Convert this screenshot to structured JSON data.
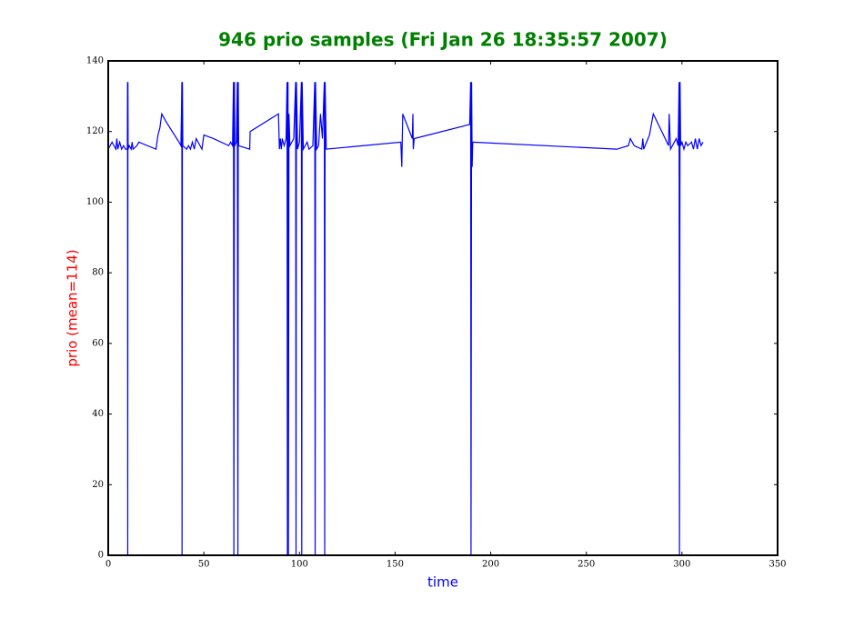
{
  "chart_data": {
    "type": "line",
    "title": "946 prio samples (Fri Jan 26 18:35:57 2007)",
    "xlabel": "time",
    "ylabel": "prio (mean=114)",
    "xlim": [
      0,
      350
    ],
    "ylim": [
      0,
      140
    ],
    "xticks": [
      0,
      50,
      100,
      150,
      200,
      250,
      300,
      350
    ],
    "yticks": [
      0,
      20,
      40,
      60,
      80,
      100,
      120,
      140
    ],
    "x": [
      0,
      2,
      4,
      4.5,
      5,
      6,
      7,
      8,
      9,
      10,
      10.1,
      10.2,
      10.3,
      10.4,
      11,
      12,
      12.5,
      13,
      15,
      16,
      25,
      26,
      27,
      28,
      30,
      37,
      38,
      38.3,
      38.5,
      38.6,
      38.8,
      39,
      41,
      42,
      43,
      44,
      45,
      46,
      48,
      49,
      50,
      55,
      63,
      64,
      65,
      65.5,
      65.7,
      66,
      66.2,
      67,
      67.5,
      67.8,
      68,
      68.2,
      74,
      74.2,
      89,
      89.5,
      90,
      90.5,
      91,
      92,
      93,
      93.5,
      93.7,
      94,
      94.2,
      94.5,
      95,
      97,
      98,
      98.2,
      98.4,
      99,
      100,
      101,
      101.2,
      101.4,
      102,
      104,
      105,
      107,
      108,
      108.2,
      108.4,
      109,
      110,
      111,
      112,
      113,
      113.2,
      113.4,
      114,
      153,
      153.5,
      154,
      159,
      159.3,
      159.5,
      160,
      189,
      189.5,
      189.7,
      190,
      190.3,
      190.6,
      266,
      272,
      273,
      275,
      279,
      279.5,
      280,
      283,
      285,
      293,
      293.3,
      294,
      297,
      298,
      298.5,
      298.7,
      299,
      299.3,
      300,
      301,
      302,
      303,
      305,
      306,
      307,
      308,
      309,
      310,
      311
    ],
    "series": [
      {
        "name": "prio",
        "color": "#0000ff",
        "values": [
          115,
          117,
          115,
          118,
          115,
          117,
          115,
          116,
          115,
          115,
          134,
          0,
          134,
          115,
          116,
          115,
          117,
          115,
          116,
          117,
          115,
          119,
          121,
          125,
          123,
          117,
          116,
          125,
          134,
          0,
          134,
          116,
          115,
          116,
          115,
          117,
          115,
          118,
          116,
          115,
          119,
          118,
          116,
          117,
          116,
          134,
          0,
          134,
          116,
          117,
          134,
          0,
          134,
          116,
          115,
          120,
          125,
          115,
          118,
          115,
          118,
          116,
          118,
          134,
          0,
          134,
          0,
          125,
          116,
          118,
          134,
          0,
          134,
          115,
          117,
          134,
          0,
          134,
          115,
          117,
          115,
          116,
          134,
          0,
          134,
          115,
          116,
          125,
          118,
          134,
          0,
          134,
          115,
          117,
          110,
          125,
          118,
          125,
          115,
          118,
          122,
          134,
          0,
          134,
          110,
          117,
          115,
          116,
          118,
          116,
          115,
          118,
          115,
          119,
          125,
          116,
          125,
          115,
          118,
          116,
          134,
          0,
          134,
          116,
          117,
          115,
          117,
          116,
          117,
          115,
          118,
          115,
          118,
          116,
          117
        ]
      }
    ],
    "title_color": "#008000",
    "xlabel_color": "#0000ff",
    "ylabel_color": "#ff0000"
  }
}
